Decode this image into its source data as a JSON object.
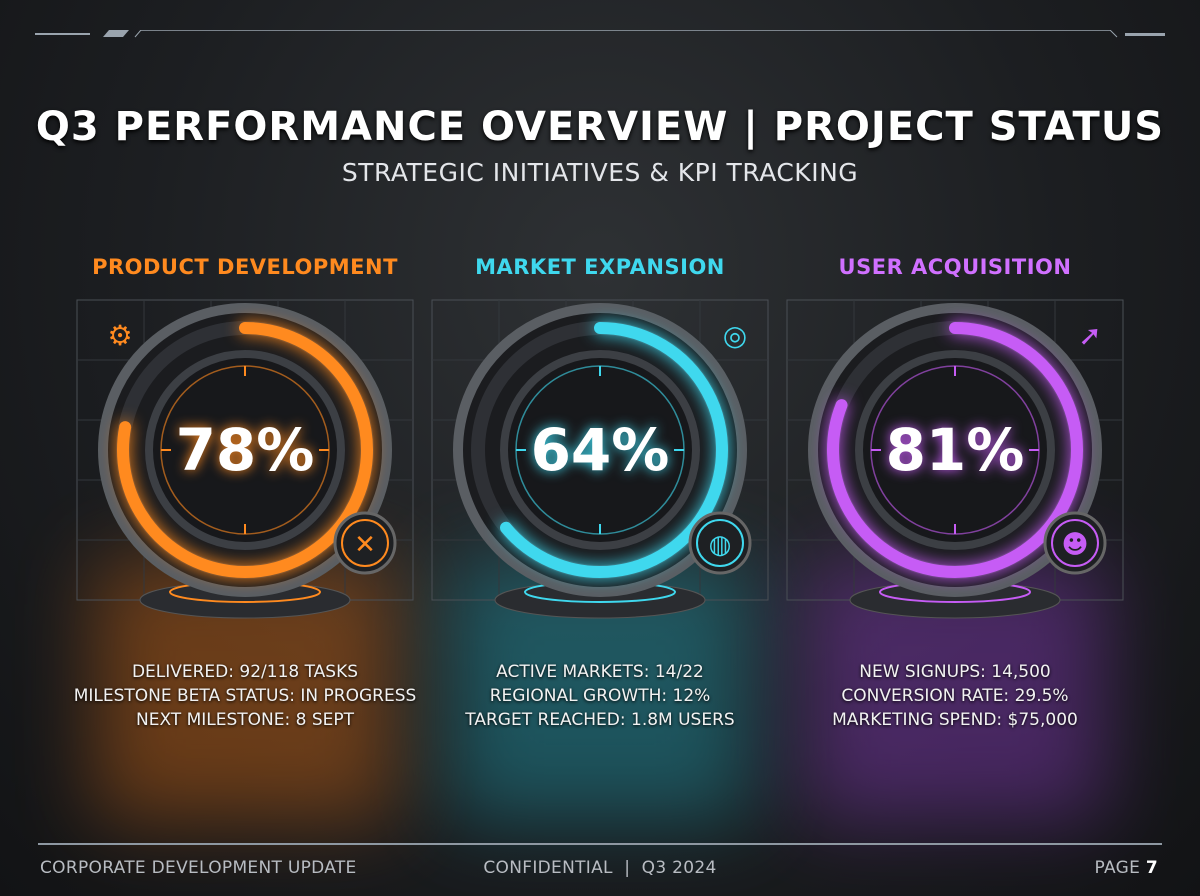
{
  "header": {
    "title": "Q3 PERFORMANCE OVERVIEW | PROJECT STATUS",
    "subtitle": "STRATEGIC INITIATIVES & KPI TRACKING"
  },
  "panels": [
    {
      "title": "PRODUCT DEVELOPMENT",
      "percent_label": "78%",
      "percent": 78,
      "color": "#ff8a1f",
      "top_icon": "gear-wrench-icon",
      "badge_icon": "tools-icon",
      "stats": [
        "DELIVERED: 92/118 TASKS",
        "MILESTONE BETA STATUS: IN PROGRESS",
        "NEXT MILESTONE: 8 SEPT"
      ]
    },
    {
      "title": "MARKET EXPANSION",
      "percent_label": "64%",
      "percent": 64,
      "color": "#3fd8ee",
      "top_icon": "globe-refresh-icon",
      "badge_icon": "globe-icon",
      "stats": [
        "ACTIVE MARKETS: 14/22",
        "REGIONAL GROWTH: 12%",
        "TARGET REACHED: 1.8M USERS"
      ]
    },
    {
      "title": "USER ACQUISITION",
      "percent_label": "81%",
      "percent": 81,
      "color": "#c65cf5",
      "top_icon": "rocket-icon",
      "badge_icon": "users-icon",
      "stats": [
        "NEW SIGNUPS: 14,500",
        "CONVERSION RATE: 29.5%",
        "MARKETING SPEND: $75,000"
      ]
    }
  ],
  "footer": {
    "left": "CORPORATE DEVELOPMENT UPDATE",
    "center": "CONFIDENTIAL  |  Q3 2024",
    "right_label": "PAGE",
    "page": "7"
  }
}
